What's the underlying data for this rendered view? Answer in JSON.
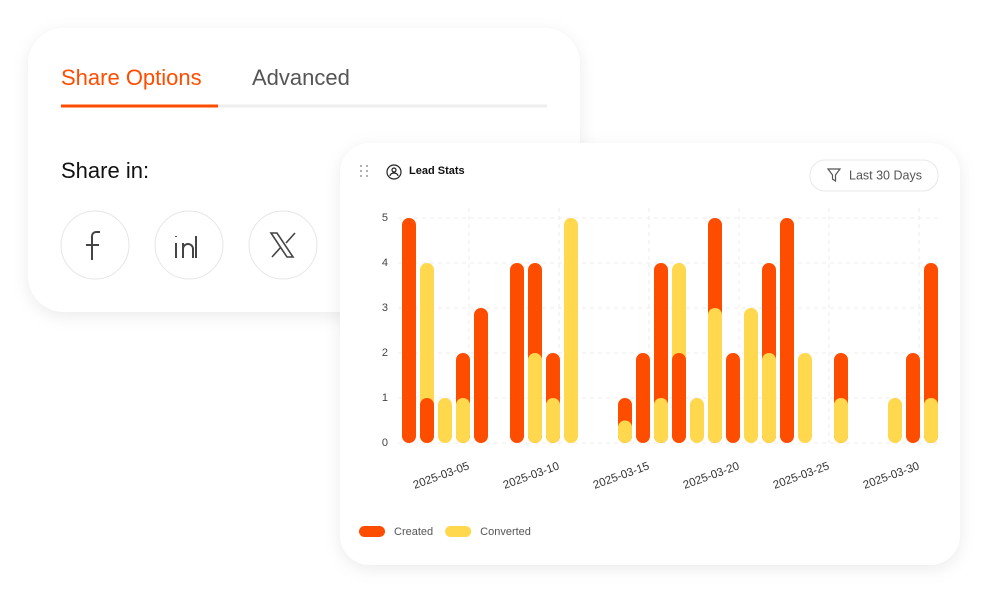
{
  "tabs": [
    "Share Options",
    "Advanced"
  ],
  "share_heading": "Share in:",
  "chart_data": {
    "type": "bar",
    "title": "Lead Stats",
    "filter": "Last 30 Days",
    "categories": [
      null,
      null,
      null,
      "2025-03-05",
      null,
      null,
      null,
      null,
      "2025-03-10",
      null,
      null,
      null,
      null,
      "2025-03-15",
      null,
      null,
      null,
      null,
      "2025-03-20",
      null,
      null,
      null,
      null,
      "2025-03-25",
      null,
      null,
      null,
      null,
      "2025-03-30",
      null
    ],
    "series": [
      {
        "name": "Created",
        "color": "#ff4d00",
        "values": [
          5,
          1,
          0,
          2,
          3,
          0,
          4,
          4,
          2,
          0,
          0,
          0,
          1,
          2,
          4,
          2,
          0,
          5,
          2,
          0,
          4,
          5,
          0,
          0,
          2,
          0,
          0,
          0,
          2,
          4
        ]
      },
      {
        "name": "Converted",
        "color": "#ffd84d",
        "values": [
          0,
          4,
          1,
          1,
          0,
          0,
          0,
          2,
          1,
          5,
          0,
          0,
          0.5,
          0,
          1,
          4,
          1,
          3,
          0,
          3,
          2,
          0,
          2,
          0,
          1,
          0,
          0,
          1,
          0,
          1
        ]
      }
    ],
    "ylim": [
      0,
      5
    ],
    "yticks": [
      0,
      1,
      2,
      3,
      4,
      5
    ],
    "grid": true
  }
}
